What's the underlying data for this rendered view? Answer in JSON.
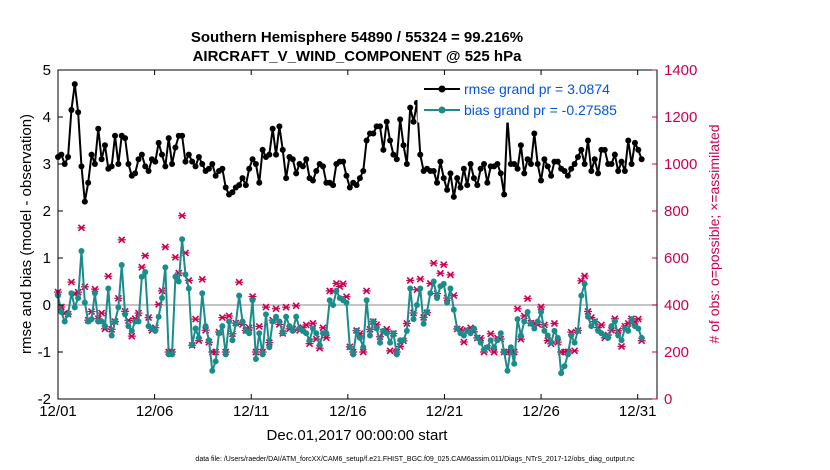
{
  "chart_data": {
    "type": "line",
    "title": "Southern Hemisphere 54890 / 55324 = 99.216%",
    "subtitle": "AIRCRAFT_V_WIND_COMPONENT @ 525 hPa",
    "xlabel": "Dec.01,2017 00:00:00 start",
    "ylabel": "rmse and bias (model - observation)",
    "ylabel_right": "# of obs: o=possible; ×=assimilated",
    "footnote": "data file: /Users/raeder/DAI/ATM_forcXX/CAM6_setup/f.e21.FHIST_BGC.f09_025.CAM6assim.011/Diags_NTrS_2017-12/obs_diag_output.nc",
    "xlim": [
      1,
      32
    ],
    "ylim": [
      -2,
      5
    ],
    "ylim_right": [
      0,
      1400
    ],
    "x_ticks": [
      1,
      6,
      11,
      16,
      21,
      26,
      31
    ],
    "x_tick_labels": [
      "12/01",
      "12/06",
      "12/11",
      "12/16",
      "12/21",
      "12/26",
      "12/31"
    ],
    "y_ticks": [
      -2,
      -1,
      0,
      1,
      2,
      3,
      4,
      5
    ],
    "y_tick_labels": [
      "-2",
      "-1",
      "0",
      "1",
      "2",
      "3",
      "4",
      "5"
    ],
    "y_right_ticks": [
      0,
      200,
      400,
      600,
      800,
      1000,
      1200,
      1400
    ],
    "y_right_tick_labels": [
      "0",
      "200",
      "400",
      "600",
      "800",
      "1000",
      "1200",
      "1400"
    ],
    "legend_position": "top-right",
    "series": [
      {
        "name": "rmse grand pr = 3.0874",
        "color": "#000000",
        "values": [
          3.15,
          3.2,
          3.0,
          3.15,
          4.15,
          4.7,
          4.1,
          2.95,
          2.2,
          2.6,
          3.2,
          3.0,
          3.75,
          3.1,
          3.4,
          2.9,
          2.95,
          3.6,
          3.0,
          3.6,
          3.55,
          3.0,
          2.75,
          2.8,
          3.1,
          3.2,
          2.95,
          2.85,
          3.1,
          3.05,
          3.45,
          3.2,
          2.95,
          3.55,
          3.0,
          3.35,
          3.6,
          3.6,
          3.05,
          3.2,
          3.05,
          2.95,
          3.15,
          3.0,
          2.85,
          2.9,
          3.0,
          2.75,
          2.85,
          2.9,
          2.5,
          2.35,
          2.4,
          2.5,
          2.55,
          2.7,
          2.55,
          2.9,
          3.1,
          3.0,
          2.6,
          3.3,
          3.15,
          3.2,
          3.75,
          3.2,
          3.8,
          3.3,
          2.7,
          3.15,
          3.1,
          2.8,
          3.0,
          2.95,
          3.1,
          2.7,
          2.65,
          2.85,
          3.0,
          2.95,
          2.6,
          2.6,
          2.55,
          3.0,
          3.05,
          3.05,
          2.75,
          2.5,
          2.6,
          2.55,
          2.7,
          2.85,
          3.5,
          3.65,
          3.65,
          3.8,
          3.8,
          3.3,
          3.9,
          3.5,
          3.2,
          3.1,
          3.95,
          3.4,
          3.0,
          4.2,
          3.9,
          4.3,
          3.2,
          2.85,
          2.9,
          2.85,
          2.85,
          2.6,
          3.05,
          2.7,
          2.45,
          2.8,
          2.3,
          2.7,
          2.5,
          2.9,
          2.55,
          3.0,
          2.7,
          2.55,
          2.9,
          3.0,
          2.6,
          2.95,
          2.95,
          3.0,
          2.8,
          2.35,
          3.95,
          3.0,
          3.0,
          2.9,
          3.4,
          2.8,
          3.1,
          3.0,
          3.65,
          3.0,
          2.65,
          3.1,
          2.95,
          2.75,
          3.05,
          3.05,
          2.9,
          2.85,
          2.75,
          2.9,
          3.0,
          3.15,
          3.3,
          3.0,
          3.5,
          2.85,
          3.1,
          2.8,
          3.3,
          3.3,
          3.0,
          3.0,
          3.2,
          2.85,
          3.05,
          2.85,
          3.5,
          3.0,
          3.45,
          3.3,
          3.1
        ]
      },
      {
        "name": "bias grand pr = -0.27585",
        "color": "#1a8c8c",
        "values": [
          0.2,
          -0.15,
          -0.35,
          -0.2,
          0.25,
          -0.05,
          0.15,
          1.15,
          0.05,
          -0.35,
          -0.3,
          0.25,
          -0.35,
          -0.35,
          -0.45,
          0.35,
          -0.65,
          -0.35,
          -0.05,
          0.85,
          -0.2,
          -0.45,
          -0.55,
          -0.35,
          -0.35,
          0.6,
          0.7,
          -0.45,
          -0.5,
          -0.55,
          -0.25,
          0.15,
          0.8,
          -1.05,
          -1.05,
          0.6,
          0.5,
          1.4,
          0.65,
          0.35,
          -0.85,
          -0.5,
          -0.7,
          0.25,
          -0.45,
          -0.75,
          -1.4,
          -1.2,
          -0.6,
          -0.45,
          -1.05,
          -0.35,
          -0.75,
          -0.4,
          0.2,
          -0.35,
          -0.55,
          -0.6,
          0.1,
          -1.15,
          -0.6,
          -1.05,
          -0.2,
          -0.9,
          -0.35,
          -0.25,
          -0.35,
          -0.6,
          -0.25,
          -0.45,
          -0.55,
          -0.25,
          -0.5,
          -0.55,
          -0.6,
          -0.75,
          -0.5,
          -0.6,
          -0.85,
          -0.6,
          -0.6,
          0.1,
          0.0,
          0.3,
          0.15,
          0.1,
          0.05,
          -0.9,
          -1.05,
          -0.55,
          -0.7,
          -0.9,
          0.1,
          -0.65,
          -0.35,
          -0.5,
          -0.8,
          -0.55,
          -0.6,
          -0.8,
          -0.6,
          -1.05,
          -0.75,
          -0.75,
          -0.55,
          0.35,
          -0.3,
          0.0,
          0.35,
          -0.4,
          -0.15,
          0.25,
          0.5,
          0.15,
          0.4,
          0.45,
          0.05,
          0.35,
          -0.1,
          -0.5,
          -0.6,
          -0.65,
          -0.55,
          -0.6,
          -0.5,
          -0.7,
          -0.8,
          -0.95,
          -0.9,
          -0.75,
          -0.9,
          -0.75,
          -0.6,
          -1.0,
          -1.4,
          -0.9,
          -1.25,
          -0.3,
          -0.65,
          -0.35,
          -0.15,
          -0.4,
          -0.5,
          -0.35,
          -0.15,
          -0.55,
          -0.65,
          -0.8,
          -0.55,
          -0.7,
          -1.45,
          -1.3,
          -1.05,
          -0.65,
          -0.8,
          -0.55,
          0.2,
          0.45,
          -0.25,
          -0.45,
          -0.35,
          -0.55,
          -0.6,
          -0.65,
          -0.7,
          -0.45,
          -0.35,
          -0.65,
          -0.75,
          -0.5,
          -0.55,
          -0.3,
          -0.45,
          -0.5,
          -0.7
        ]
      }
    ]
  }
}
